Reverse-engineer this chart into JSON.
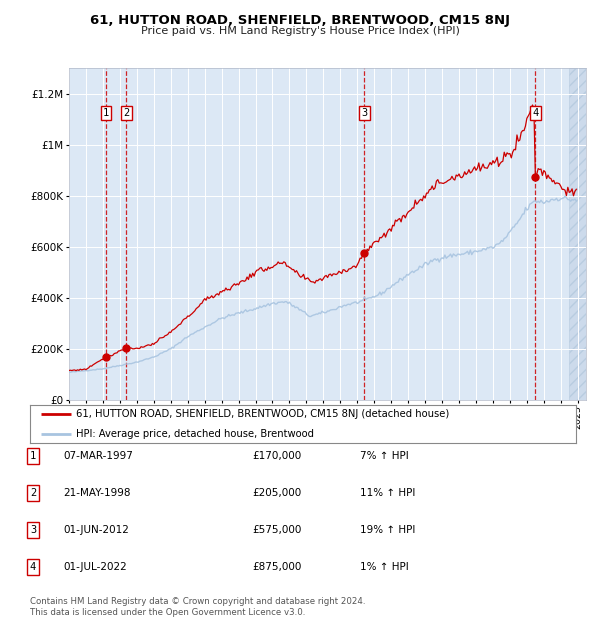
{
  "title": "61, HUTTON ROAD, SHENFIELD, BRENTWOOD, CM15 8NJ",
  "subtitle": "Price paid vs. HM Land Registry's House Price Index (HPI)",
  "legend_line1": "61, HUTTON ROAD, SHENFIELD, BRENTWOOD, CM15 8NJ (detached house)",
  "legend_line2": "HPI: Average price, detached house, Brentwood",
  "footer1": "Contains HM Land Registry data © Crown copyright and database right 2024.",
  "footer2": "This data is licensed under the Open Government Licence v3.0.",
  "transactions": [
    {
      "num": 1,
      "date": "07-MAR-1997",
      "price": 170000,
      "pct": "7%",
      "dir": "↑"
    },
    {
      "num": 2,
      "date": "21-MAY-1998",
      "price": 205000,
      "pct": "11%",
      "dir": "↑"
    },
    {
      "num": 3,
      "date": "01-JUN-2012",
      "price": 575000,
      "pct": "19%",
      "dir": "↑"
    },
    {
      "num": 4,
      "date": "01-JUL-2022",
      "price": 875000,
      "pct": "1%",
      "dir": "↑"
    }
  ],
  "xmin": 1995.0,
  "xmax": 2025.5,
  "ymin": 0,
  "ymax": 1300000,
  "yticks": [
    0,
    200000,
    400000,
    600000,
    800000,
    1000000,
    1200000
  ],
  "ylabels": [
    "£0",
    "£200K",
    "£400K",
    "£600K",
    "£800K",
    "£1M",
    "£1.2M"
  ],
  "hpi_color": "#a8c4e0",
  "price_color": "#cc0000",
  "dot_color": "#cc0000",
  "vline_color": "#cc0000",
  "bg_chart": "#dce8f5",
  "grid_color": "#ffffff",
  "label_border": "#cc0000",
  "trans_years": [
    1997.18,
    1998.38,
    2012.42,
    2022.5
  ],
  "trans_prices": [
    170000,
    205000,
    575000,
    875000
  ]
}
